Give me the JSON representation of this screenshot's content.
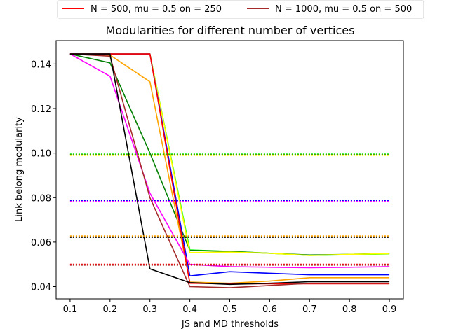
{
  "chart_data": {
    "type": "line",
    "title": "Modularities for different number of vertices",
    "xlabel": "JS and MD thresholds",
    "ylabel": "Link belong modularity",
    "xlim": [
      0.065,
      0.935
    ],
    "ylim": [
      0.0345,
      0.1505
    ],
    "xticks": [
      0.1,
      0.2,
      0.3,
      0.4,
      0.5,
      0.6,
      0.7,
      0.8,
      0.9
    ],
    "yticks": [
      0.04,
      0.06,
      0.08,
      0.1,
      0.12,
      0.14
    ],
    "legend_placement": "top-center, above plot",
    "legend": [
      {
        "label": "N = 500, mu = 0.5 on = 250",
        "color": "#ff0000"
      },
      {
        "label": "N = 1000, mu = 0.5 on = 500",
        "color": "#a52a2a"
      }
    ],
    "x": [
      0.1,
      0.2,
      0.3,
      0.4,
      0.5,
      0.6,
      0.7,
      0.8,
      0.9
    ],
    "series": [
      {
        "color": "#00ff00",
        "style": "solid",
        "values": [
          0.1445,
          0.1445,
          0.1445,
          0.0565,
          0.0558,
          0.055,
          0.054,
          0.0543,
          0.0547
        ]
      },
      {
        "color": "#008000",
        "style": "solid",
        "values": [
          0.1445,
          0.1405,
          0.1,
          0.0563,
          0.0558,
          0.055,
          0.0542,
          0.0545,
          0.055
        ]
      },
      {
        "color": "#ffff00",
        "style": "solid",
        "values": [
          0.1445,
          0.1445,
          0.1445,
          0.0553,
          0.0555,
          0.055,
          0.054,
          0.0545,
          0.0548
        ]
      },
      {
        "color": "#ffa500",
        "style": "solid",
        "values": [
          0.1445,
          0.144,
          0.132,
          0.042,
          0.0415,
          0.0425,
          0.044,
          0.044,
          0.044
        ]
      },
      {
        "color": "#0000ff",
        "style": "solid",
        "values": [
          0.1445,
          0.1445,
          0.1445,
          0.0448,
          0.0467,
          0.046,
          0.0453,
          0.0453,
          0.0453
        ]
      },
      {
        "color": "#ff00ff",
        "style": "solid",
        "values": [
          0.1445,
          0.1345,
          0.082,
          0.05,
          0.049,
          0.0487,
          0.0485,
          0.0487,
          0.049
        ]
      },
      {
        "color": "#ff0000",
        "style": "solid",
        "values": [
          0.1445,
          0.1445,
          0.1445,
          0.0415,
          0.0413,
          0.0413,
          0.0413,
          0.0413,
          0.0413
        ]
      },
      {
        "color": "#a52a2a",
        "style": "solid",
        "values": [
          0.1445,
          0.1435,
          0.08,
          0.04,
          0.0395,
          0.0405,
          0.0415,
          0.0415,
          0.0415
        ]
      },
      {
        "color": "#000000",
        "style": "solid",
        "values": [
          0.1445,
          0.1445,
          0.048,
          0.0418,
          0.041,
          0.0415,
          0.0422,
          0.0422,
          0.0422
        ]
      },
      {
        "color": "#00ff00",
        "style": "dotted",
        "values": [
          0.0995,
          0.0995,
          0.0995,
          0.0995,
          0.0995,
          0.0995,
          0.0995,
          0.0995,
          0.0995
        ]
      },
      {
        "color": "#008000",
        "style": "dotted",
        "values": [
          0.0993,
          0.0993,
          0.0993,
          0.0993,
          0.0993,
          0.0993,
          0.0993,
          0.0993,
          0.0993
        ]
      },
      {
        "color": "#ffff00",
        "style": "dotted",
        "values": [
          0.099,
          0.099,
          0.099,
          0.099,
          0.099,
          0.099,
          0.099,
          0.099,
          0.099
        ]
      },
      {
        "color": "#0000ff",
        "style": "dotted",
        "values": [
          0.0788,
          0.0788,
          0.0788,
          0.0788,
          0.0788,
          0.0788,
          0.0788,
          0.0788,
          0.0788
        ]
      },
      {
        "color": "#ff00ff",
        "style": "dotted",
        "values": [
          0.0782,
          0.0782,
          0.0782,
          0.0782,
          0.0782,
          0.0782,
          0.0782,
          0.0782,
          0.0782
        ]
      },
      {
        "color": "#ffa500",
        "style": "dotted",
        "values": [
          0.0627,
          0.0627,
          0.0627,
          0.0627,
          0.0627,
          0.0627,
          0.0627,
          0.0627,
          0.0627
        ]
      },
      {
        "color": "#000000",
        "style": "dotted",
        "values": [
          0.0622,
          0.0622,
          0.0622,
          0.0622,
          0.0622,
          0.0622,
          0.0622,
          0.0622,
          0.0622
        ]
      },
      {
        "color": "#ff0000",
        "style": "dotted",
        "values": [
          0.05,
          0.05,
          0.05,
          0.05,
          0.05,
          0.05,
          0.05,
          0.05,
          0.05
        ]
      },
      {
        "color": "#a52a2a",
        "style": "dotted",
        "values": [
          0.0497,
          0.0497,
          0.0497,
          0.0497,
          0.0497,
          0.0497,
          0.0497,
          0.0497,
          0.0497
        ]
      }
    ]
  }
}
